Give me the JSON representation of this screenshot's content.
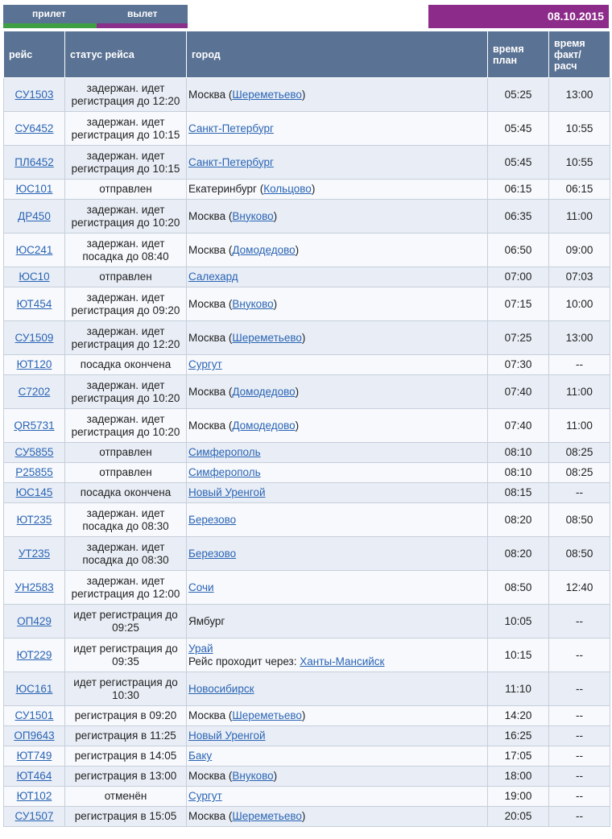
{
  "tabs": {
    "arrival": "прилет",
    "departure": "вылет"
  },
  "date": "08.10.2015",
  "colors": {
    "header_bg": "#5a7293",
    "date_bg": "#8c2b8a",
    "tab_green": "#3fa043",
    "tab_purple": "#8a2f8c",
    "link": "#2a64b4"
  },
  "columns": {
    "flight": "рейс",
    "status": "статус рейса",
    "city": "город",
    "plan_l1": "время",
    "plan_l2": "план",
    "fact_l1": "время",
    "fact_l2": "факт/",
    "fact_l3": "расч"
  },
  "flights": [
    {
      "flight": "СУ1503",
      "s1": "задержан. идет",
      "s2": "регистрация до 12:20",
      "city": "Москва",
      "airport": "Шереметьево",
      "plan": "05:25",
      "fact": "13:00"
    },
    {
      "flight": "СУ6452",
      "s1": "задержан. идет",
      "s2": "регистрация до 10:15",
      "city": "Санкт-Петербург",
      "city_link": true,
      "plan": "05:45",
      "fact": "10:55"
    },
    {
      "flight": "ПЛ6452",
      "s1": "задержан. идет",
      "s2": "регистрация до 10:15",
      "city": "Санкт-Петербург",
      "city_link": true,
      "plan": "05:45",
      "fact": "10:55"
    },
    {
      "flight": "ЮС101",
      "s1": "отправлен",
      "city": "Екатеринбург",
      "airport": "Кольцово",
      "plan": "06:15",
      "fact": "06:15"
    },
    {
      "flight": "ДР450",
      "s1": "задержан. идет",
      "s2": "регистрация до 10:20",
      "city": "Москва",
      "airport": "Внуково",
      "plan": "06:35",
      "fact": "11:00"
    },
    {
      "flight": "ЮС241",
      "s1": "задержан. идет",
      "s2": "посадка до 08:40",
      "city": "Москва",
      "airport": "Домодедово",
      "plan": "06:50",
      "fact": "09:00"
    },
    {
      "flight": "ЮС10",
      "s1": "отправлен",
      "city": "Салехард",
      "city_link": true,
      "plan": "07:00",
      "fact": "07:03"
    },
    {
      "flight": "ЮТ454",
      "s1": "задержан. идет",
      "s2": "регистрация до 09:20",
      "city": "Москва",
      "airport": "Внуково",
      "plan": "07:15",
      "fact": "10:00"
    },
    {
      "flight": "СУ1509",
      "s1": "задержан. идет",
      "s2": "регистрация до 12:20",
      "city": "Москва",
      "airport": "Шереметьево",
      "plan": "07:25",
      "fact": "13:00"
    },
    {
      "flight": "ЮТ120",
      "s1": "посадка окончена",
      "city": "Сургут",
      "city_link": true,
      "plan": "07:30",
      "fact": "--"
    },
    {
      "flight": "С7202",
      "s1": "задержан. идет",
      "s2": "регистрация до 10:20",
      "city": "Москва",
      "airport": "Домодедово",
      "plan": "07:40",
      "fact": "11:00"
    },
    {
      "flight": "QR5731",
      "s1": "задержан. идет",
      "s2": "регистрация до 10:20",
      "city": "Москва",
      "airport": "Домодедово",
      "plan": "07:40",
      "fact": "11:00"
    },
    {
      "flight": "СУ5855",
      "s1": "отправлен",
      "city": "Симферополь",
      "city_link": true,
      "plan": "08:10",
      "fact": "08:25"
    },
    {
      "flight": "Р25855",
      "s1": "отправлен",
      "city": "Симферополь",
      "city_link": true,
      "plan": "08:10",
      "fact": "08:25"
    },
    {
      "flight": "ЮС145",
      "s1": "посадка окончена",
      "city": "Новый Уренгой",
      "city_link": true,
      "plan": "08:15",
      "fact": "--"
    },
    {
      "flight": "ЮТ235",
      "s1": "задержан. идет",
      "s2": "посадка до 08:30",
      "city": "Березово",
      "city_link": true,
      "plan": "08:20",
      "fact": "08:50"
    },
    {
      "flight": "УТ235",
      "s1": "задержан. идет",
      "s2": "посадка до 08:30",
      "city": "Березово",
      "city_link": true,
      "plan": "08:20",
      "fact": "08:50"
    },
    {
      "flight": "УН2583",
      "s1": "задержан. идет",
      "s2": "регистрация до 12:00",
      "city": "Сочи",
      "city_link": true,
      "plan": "08:50",
      "fact": "12:40"
    },
    {
      "flight": "ОП429",
      "s1": "идет регистрация до",
      "s2": "09:25",
      "city": "Ямбург",
      "plan": "10:05",
      "fact": "--"
    },
    {
      "flight": "ЮТ229",
      "s1": "идет регистрация до",
      "s2": "09:35",
      "city": "Урай",
      "city_link": true,
      "via_label": "Рейс проходит через:",
      "via": "Ханты-Мансийск",
      "plan": "10:15",
      "fact": "--"
    },
    {
      "flight": "ЮС161",
      "s1": "идет регистрация до",
      "s2": "10:30",
      "city": "Новосибирск",
      "city_link": true,
      "plan": "11:10",
      "fact": "--"
    },
    {
      "flight": "СУ1501",
      "s1": "регистрация в 09:20",
      "city": "Москва",
      "airport": "Шереметьево",
      "plan": "14:20",
      "fact": "--"
    },
    {
      "flight": "ОП9643",
      "s1": "регистрация в 11:25",
      "city": "Новый Уренгой",
      "city_link": true,
      "plan": "16:25",
      "fact": "--"
    },
    {
      "flight": "ЮТ749",
      "s1": "регистрация в 14:05",
      "city": "Баку",
      "city_link": true,
      "plan": "17:05",
      "fact": "--"
    },
    {
      "flight": "ЮТ464",
      "s1": "регистрация в 13:00",
      "city": "Москва",
      "airport": "Внуково",
      "plan": "18:00",
      "fact": "--"
    },
    {
      "flight": "ЮТ102",
      "s1": "отменён",
      "city": "Сургут",
      "city_link": true,
      "plan": "19:00",
      "fact": "--"
    },
    {
      "flight": "СУ1507",
      "s1": "регистрация в 15:05",
      "city": "Москва",
      "airport": "Шереметьево",
      "plan": "20:05",
      "fact": "--"
    }
  ]
}
